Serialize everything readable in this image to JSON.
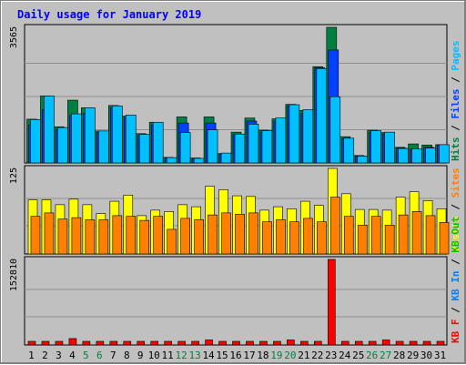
{
  "chart_data": {
    "type": "bar",
    "title": "Daily usage for January 2019",
    "days": [
      "1",
      "2",
      "3",
      "4",
      "5",
      "6",
      "7",
      "8",
      "9",
      "10",
      "11",
      "12",
      "13",
      "14",
      "15",
      "16",
      "17",
      "18",
      "19",
      "20",
      "21",
      "22",
      "23",
      "24",
      "25",
      "26",
      "27",
      "28",
      "29",
      "30",
      "31"
    ],
    "weekend_days": [
      "5",
      "6",
      "12",
      "13",
      "19",
      "20",
      "26",
      "27"
    ],
    "colors": {
      "hits": "#008040",
      "files": "#0040ff",
      "pages": "#00c0ff",
      "visits": "#ffff00",
      "sites": "#ff8000",
      "kb_in": "#0080ff",
      "kb_out": "#00c000",
      "kb_f": "#ff0000",
      "weekday_label": "#000000",
      "weekend_label": "#008040"
    },
    "panels": [
      {
        "name": "hits-files-pages",
        "max_label": "3565",
        "ymax": 3565,
        "legend": [
          {
            "text": "Hits",
            "color": "#008040"
          },
          {
            "text": "Files",
            "color": "#0040ff"
          },
          {
            "text": "Pages",
            "color": "#00c0ff"
          }
        ],
        "series": [
          {
            "name": "Hits",
            "color": "#008040",
            "values": [
              1150,
              1760,
              950,
              1650,
              1450,
              840,
              1510,
              1230,
              770,
              1070,
              145,
              1210,
              130,
              1210,
              245,
              810,
              1180,
              860,
              1160,
              1540,
              1380,
              2530,
              3565,
              690,
              195,
              860,
              800,
              410,
              500,
              470,
              480
            ]
          },
          {
            "name": "Files",
            "color": "#0040ff",
            "values": [
              1000,
              1400,
              880,
              1250,
              1300,
              800,
              1450,
              1200,
              720,
              1000,
              130,
              1050,
              110,
              1050,
              230,
              750,
              1100,
              800,
              1100,
              1500,
              1300,
              2500,
              2970,
              630,
              180,
              800,
              760,
              390,
              360,
              410,
              460
            ]
          },
          {
            "name": "Pages",
            "color": "#00c0ff",
            "values": [
              1140,
              1760,
              930,
              1290,
              1450,
              840,
              1500,
              1260,
              750,
              1070,
              140,
              800,
              120,
              870,
              260,
              760,
              1020,
              850,
              1180,
              1530,
              1400,
              2480,
              1740,
              650,
              180,
              850,
              810,
              380,
              370,
              390,
              480
            ]
          }
        ]
      },
      {
        "name": "visits-sites",
        "max_label": "125",
        "ymax": 125,
        "legend": [
          {
            "text": "Visits",
            "color": "#ffff00"
          },
          {
            "text": "Sites",
            "color": "#ff8000"
          }
        ],
        "series": [
          {
            "name": "Visits",
            "color": "#ffff00",
            "values": [
              79,
              79,
              72,
              80,
              72,
              59,
              77,
              86,
              56,
              64,
              62,
              72,
              69,
              99,
              94,
              85,
              84,
              64,
              69,
              66,
              77,
              71,
              125,
              88,
              65,
              65,
              64,
              83,
              91,
              78,
              66
            ]
          },
          {
            "name": "Sites",
            "color": "#ff8000",
            "values": [
              55,
              60,
              51,
              53,
              50,
              50,
              56,
              55,
              49,
              55,
              36,
              52,
              50,
              57,
              60,
              58,
              60,
              47,
              50,
              47,
              52,
              47,
              83,
              55,
              42,
              55,
              42,
              57,
              62,
              56,
              46
            ]
          }
        ]
      },
      {
        "name": "kbytes",
        "max_label": "152810",
        "ymax": 152810,
        "legend": [
          {
            "text": "KB F",
            "color": "#ff0000"
          },
          {
            "text": "KB In",
            "color": "#0080ff"
          },
          {
            "text": "KB Out",
            "color": "#00c000"
          }
        ],
        "series": [
          {
            "name": "KB F",
            "color": "#ff0000",
            "values": [
              6500,
              6500,
              6500,
              11500,
              6500,
              6500,
              6500,
              6500,
              6500,
              6500,
              6500,
              6500,
              6500,
              9000,
              6500,
              6500,
              6500,
              6500,
              6500,
              9000,
              6500,
              6500,
              152810,
              6500,
              6500,
              6500,
              9000,
              6500,
              6500,
              6500,
              6500
            ]
          }
        ]
      }
    ]
  }
}
